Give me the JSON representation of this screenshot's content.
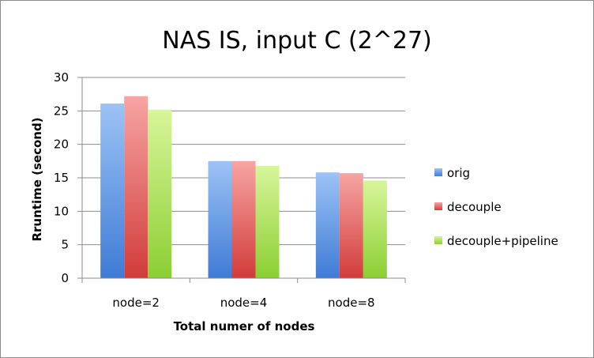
{
  "chart_data": {
    "type": "bar",
    "title": "NAS IS, input C (2^27)",
    "xlabel": "Total numer of nodes",
    "ylabel": "Rruntime (second)",
    "categories": [
      "node=2",
      "node=4",
      "node=8"
    ],
    "ylim": [
      0,
      30
    ],
    "yticks": [
      0,
      5,
      10,
      15,
      20,
      25,
      30
    ],
    "grid": true,
    "legend_position": "right",
    "series": [
      {
        "name": "orig",
        "values": [
          26.1,
          17.5,
          15.8
        ],
        "color_top": "#9cc3f5",
        "color_bottom": "#3f7bd6"
      },
      {
        "name": "decouple",
        "values": [
          27.2,
          17.5,
          15.7
        ],
        "color_top": "#f6a5a3",
        "color_bottom": "#d23c3a"
      },
      {
        "name": "decouple+pipeline",
        "values": [
          25.2,
          16.8,
          14.6
        ],
        "color_top": "#d8f59a",
        "color_bottom": "#8bcf33"
      }
    ]
  }
}
